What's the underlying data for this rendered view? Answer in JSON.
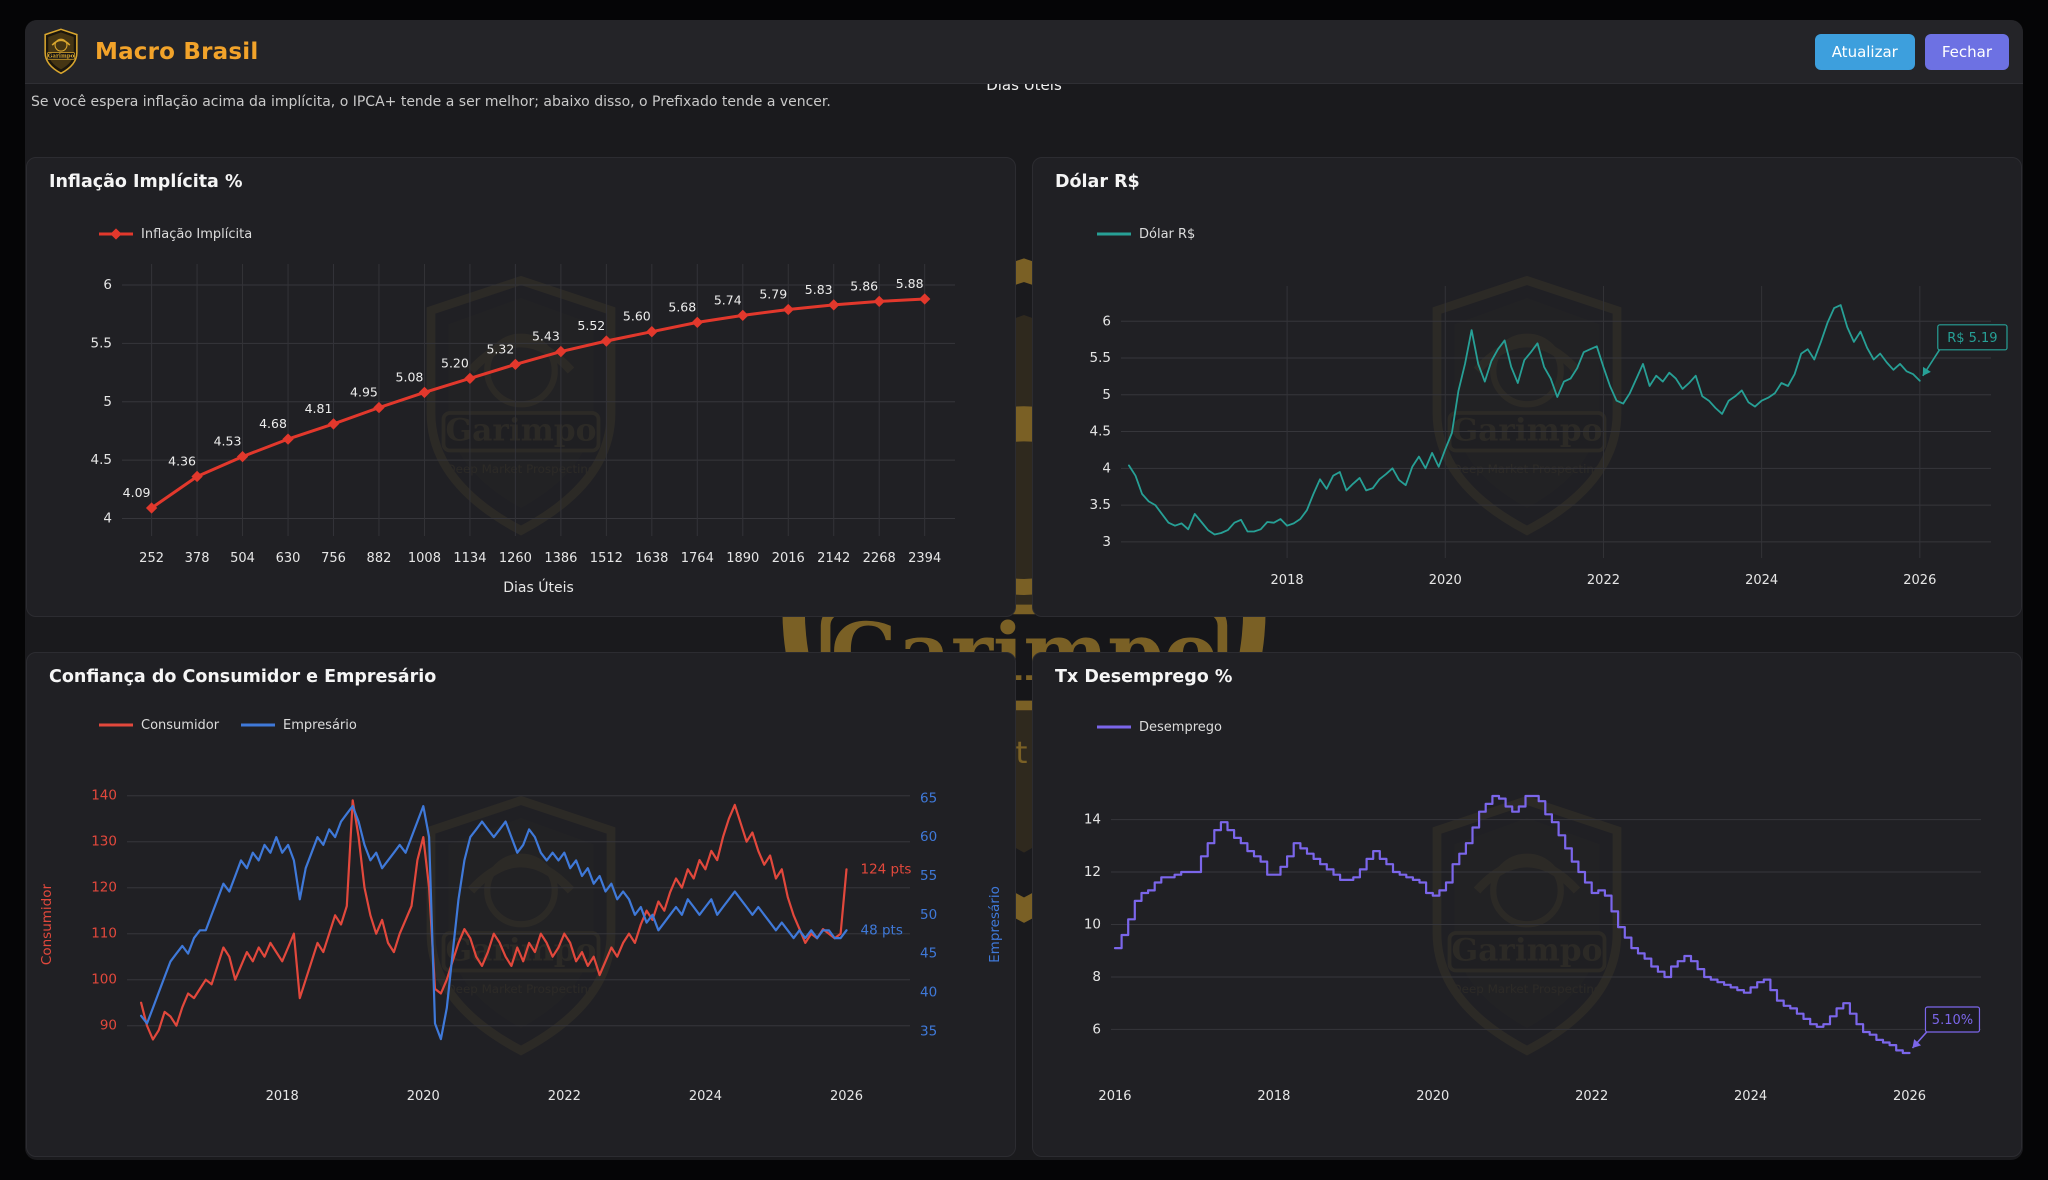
{
  "header": {
    "title": "Macro Brasil",
    "accent_color": "#f2a32a",
    "buttons": {
      "refresh": "Atualizar",
      "close": "Fechar"
    },
    "button_colors": {
      "refresh": "#3d9fdd",
      "close": "#6d71e3"
    }
  },
  "top_axis_label": "Dias Úteis",
  "subtitle": "Se você espera inflação acima da implícita, o IPCA+ tende a ser melhor; abaixo disso, o Prefixado tende a vencer.",
  "watermark": {
    "name": "Garimpo",
    "tagline": "Deep Market Prospecting",
    "color": "#caa84a"
  },
  "chart_data": [
    {
      "id": "inflacao",
      "type": "line",
      "title": "Inflação Implícita %",
      "xlabel": "Dias Úteis",
      "legend": [
        {
          "label": "Inflação Implícita",
          "color": "#e2382c",
          "marker": "diamond"
        }
      ],
      "x": [
        252,
        378,
        504,
        630,
        756,
        882,
        1008,
        1134,
        1260,
        1386,
        1512,
        1638,
        1764,
        1890,
        2016,
        2142,
        2268,
        2394
      ],
      "series": [
        {
          "name": "Inflação Implícita",
          "color": "#e2382c",
          "width": 3,
          "marker": "diamond",
          "values": [
            4.09,
            4.36,
            4.53,
            4.68,
            4.81,
            4.95,
            5.08,
            5.2,
            5.32,
            5.43,
            5.52,
            5.6,
            5.68,
            5.74,
            5.79,
            5.83,
            5.86,
            5.88
          ]
        }
      ],
      "ylim": [
        3.85,
        6.18
      ],
      "yticks": [
        4,
        4.5,
        5,
        5.5,
        6
      ],
      "xlim": [
        170,
        2478
      ],
      "xticks": [
        252,
        378,
        504,
        630,
        756,
        882,
        1008,
        1134,
        1260,
        1386,
        1512,
        1638,
        1764,
        1890,
        2016,
        2142,
        2268,
        2394
      ],
      "grid": "both",
      "data_labels": true
    },
    {
      "id": "dolar",
      "type": "line",
      "title": "Dólar R$",
      "legend": [
        {
          "label": "Dólar R$",
          "color": "#27a096"
        }
      ],
      "x_start": 2016.0,
      "x_step": 0.08333,
      "series": [
        {
          "name": "Dólar R$",
          "color": "#27a096",
          "width": 1.8,
          "values": [
            4.04,
            3.9,
            3.65,
            3.55,
            3.5,
            3.38,
            3.26,
            3.22,
            3.25,
            3.17,
            3.38,
            3.27,
            3.16,
            3.1,
            3.12,
            3.16,
            3.26,
            3.3,
            3.14,
            3.14,
            3.17,
            3.27,
            3.26,
            3.31,
            3.22,
            3.25,
            3.31,
            3.43,
            3.65,
            3.85,
            3.72,
            3.9,
            3.95,
            3.7,
            3.79,
            3.87,
            3.7,
            3.73,
            3.85,
            3.92,
            4.0,
            3.84,
            3.77,
            4.02,
            4.16,
            4.0,
            4.21,
            4.02,
            4.26,
            4.48,
            5.05,
            5.42,
            5.88,
            5.42,
            5.18,
            5.46,
            5.62,
            5.74,
            5.38,
            5.16,
            5.47,
            5.58,
            5.7,
            5.38,
            5.22,
            4.97,
            5.18,
            5.22,
            5.36,
            5.58,
            5.62,
            5.66,
            5.38,
            5.12,
            4.92,
            4.88,
            5.02,
            5.22,
            5.42,
            5.12,
            5.26,
            5.18,
            5.3,
            5.22,
            5.08,
            5.16,
            5.26,
            4.98,
            4.92,
            4.82,
            4.74,
            4.92,
            4.98,
            5.06,
            4.9,
            4.84,
            4.92,
            4.96,
            5.02,
            5.16,
            5.12,
            5.28,
            5.56,
            5.62,
            5.48,
            5.72,
            5.98,
            6.18,
            6.22,
            5.92,
            5.72,
            5.86,
            5.64,
            5.48,
            5.56,
            5.44,
            5.34,
            5.42,
            5.32,
            5.28,
            5.19
          ]
        }
      ],
      "ylim": [
        2.78,
        6.48
      ],
      "yticks": [
        3,
        3.5,
        4,
        4.5,
        5,
        5.5,
        6
      ],
      "xlim": [
        2015.9,
        2026.9
      ],
      "xticks": [
        2018,
        2020,
        2022,
        2024,
        2026
      ],
      "grid": "both",
      "annotation": {
        "text": "R$ 5.19",
        "color": "#27a096",
        "last_value": 5.19
      }
    },
    {
      "id": "confianca",
      "type": "line",
      "title": "Confiança do Consumidor e Empresário",
      "legend": [
        {
          "label": "Consumidor",
          "color": "#e2483c"
        },
        {
          "label": "Empresário",
          "color": "#3f79d9"
        }
      ],
      "x_start": 2016.0,
      "x_step": 0.08333,
      "series": [
        {
          "name": "Consumidor",
          "axis": "left",
          "color": "#e2483c",
          "width": 2.2,
          "values": [
            95,
            90,
            87,
            89,
            93,
            92,
            90,
            94,
            97,
            96,
            98,
            100,
            99,
            103,
            107,
            105,
            100,
            103,
            106,
            104,
            107,
            105,
            108,
            106,
            104,
            107,
            110,
            96,
            100,
            104,
            108,
            106,
            110,
            114,
            112,
            116,
            139,
            131,
            120,
            114,
            110,
            113,
            108,
            106,
            110,
            113,
            116,
            126,
            131,
            120,
            98,
            97,
            100,
            104,
            108,
            111,
            109,
            105,
            103,
            106,
            110,
            108,
            105,
            103,
            107,
            104,
            108,
            106,
            110,
            108,
            105,
            107,
            110,
            108,
            104,
            106,
            103,
            105,
            101,
            104,
            107,
            105,
            108,
            110,
            108,
            112,
            115,
            113,
            117,
            115,
            119,
            122,
            120,
            124,
            122,
            126,
            124,
            128,
            126,
            131,
            135,
            138,
            134,
            130,
            132,
            128,
            125,
            127,
            122,
            124,
            118,
            114,
            111,
            108,
            110,
            109,
            111,
            110,
            109,
            110,
            124
          ]
        },
        {
          "name": "Empresário",
          "axis": "right",
          "color": "#3f79d9",
          "width": 2.2,
          "values": [
            37,
            36,
            38,
            40,
            42,
            44,
            45,
            46,
            45,
            47,
            48,
            48,
            50,
            52,
            54,
            53,
            55,
            57,
            56,
            58,
            57,
            59,
            58,
            60,
            58,
            59,
            57,
            52,
            56,
            58,
            60,
            59,
            61,
            60,
            62,
            63,
            64,
            62,
            59,
            57,
            58,
            56,
            57,
            58,
            59,
            58,
            60,
            62,
            64,
            60,
            36,
            34,
            38,
            45,
            52,
            57,
            60,
            61,
            62,
            61,
            60,
            61,
            62,
            60,
            58,
            59,
            61,
            60,
            58,
            57,
            58,
            57,
            58,
            56,
            57,
            55,
            56,
            54,
            55,
            53,
            54,
            52,
            53,
            52,
            50,
            51,
            49,
            50,
            48,
            49,
            50,
            51,
            50,
            52,
            51,
            50,
            51,
            52,
            50,
            51,
            52,
            53,
            52,
            51,
            50,
            51,
            50,
            49,
            48,
            49,
            48,
            47,
            48,
            47,
            48,
            47,
            48,
            48,
            47,
            47,
            48
          ]
        }
      ],
      "left_axis": {
        "label": "Consumidor",
        "color": "#e2483c",
        "ylim": [
          79.5,
          144.5
        ],
        "ticks": [
          90,
          100,
          110,
          120,
          130,
          140
        ]
      },
      "right_axis": {
        "label": "Empresário",
        "color": "#3f79d9",
        "ylim": [
          29.5,
          68
        ],
        "ticks": [
          35,
          40,
          45,
          50,
          55,
          60,
          65
        ]
      },
      "xlim": [
        2015.8,
        2026.9
      ],
      "xticks": [
        2018,
        2020,
        2022,
        2024,
        2026
      ],
      "grid": "h",
      "end_labels": [
        {
          "text": "124 pts"
        },
        {
          "text": "48 pts"
        }
      ]
    },
    {
      "id": "desemprego",
      "type": "step",
      "title": "Tx Desemprego %",
      "legend": [
        {
          "label": "Desemprego",
          "color": "#7b66ea"
        }
      ],
      "x_start": 2016.0,
      "x_step": 0.08333,
      "series": [
        {
          "name": "Desemprego",
          "color": "#7b66ea",
          "width": 2.2,
          "values": [
            9.1,
            9.6,
            10.2,
            10.9,
            11.2,
            11.3,
            11.6,
            11.8,
            11.8,
            11.9,
            12.0,
            12.0,
            12.0,
            12.6,
            13.1,
            13.6,
            13.9,
            13.6,
            13.3,
            13.1,
            12.8,
            12.6,
            12.4,
            11.9,
            11.9,
            12.2,
            12.6,
            13.1,
            12.9,
            12.7,
            12.5,
            12.3,
            12.1,
            11.9,
            11.7,
            11.7,
            11.8,
            12.1,
            12.5,
            12.8,
            12.5,
            12.3,
            12.0,
            11.9,
            11.8,
            11.7,
            11.6,
            11.2,
            11.1,
            11.3,
            11.6,
            12.3,
            12.7,
            13.1,
            13.7,
            14.3,
            14.6,
            14.9,
            14.8,
            14.5,
            14.3,
            14.5,
            14.9,
            14.9,
            14.7,
            14.2,
            13.9,
            13.4,
            12.9,
            12.4,
            12.0,
            11.6,
            11.2,
            11.3,
            11.1,
            10.5,
            9.9,
            9.5,
            9.1,
            8.9,
            8.7,
            8.4,
            8.2,
            8.0,
            8.4,
            8.6,
            8.8,
            8.6,
            8.3,
            8.0,
            7.9,
            7.8,
            7.7,
            7.6,
            7.5,
            7.4,
            7.6,
            7.8,
            7.9,
            7.5,
            7.1,
            6.9,
            6.8,
            6.6,
            6.4,
            6.2,
            6.1,
            6.2,
            6.5,
            6.8,
            7.0,
            6.6,
            6.2,
            5.9,
            5.8,
            5.6,
            5.5,
            5.4,
            5.2,
            5.1,
            5.1
          ]
        }
      ],
      "ylim": [
        4.3,
        15.7
      ],
      "yticks": [
        6,
        8,
        10,
        12,
        14
      ],
      "xlim": [
        2015.95,
        2026.9
      ],
      "xticks": [
        2016,
        2018,
        2020,
        2022,
        2024,
        2026
      ],
      "grid": "h",
      "annotation": {
        "text": "5.10%",
        "color": "#7b66ea",
        "last_value": 5.1
      }
    }
  ]
}
